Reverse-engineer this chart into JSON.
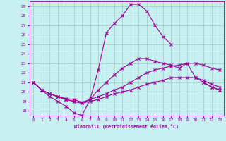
{
  "xlabel": "Windchill (Refroidissement éolien,°C)",
  "background_color": "#c8f0f0",
  "grid_color": "#a0c8c8",
  "line_color": "#990099",
  "xlim": [
    -0.5,
    23.5
  ],
  "ylim": [
    17.5,
    29.5
  ],
  "xticks": [
    0,
    1,
    2,
    3,
    4,
    5,
    6,
    7,
    8,
    9,
    10,
    11,
    12,
    13,
    14,
    15,
    16,
    17,
    18,
    19,
    20,
    21,
    22,
    23
  ],
  "yticks": [
    18,
    19,
    20,
    21,
    22,
    23,
    24,
    25,
    26,
    27,
    28,
    29
  ],
  "series": [
    {
      "x": [
        0,
        1,
        2,
        3,
        4,
        5,
        6,
        7,
        8,
        9,
        10,
        11,
        12,
        13,
        14,
        15,
        16,
        17,
        18,
        19,
        20,
        21,
        22,
        23
      ],
      "y": [
        21.0,
        20.2,
        19.5,
        19.0,
        18.5,
        17.8,
        17.5,
        19.2,
        22.3,
        26.2,
        27.2,
        28.0,
        29.2,
        29.2,
        28.5,
        27.0,
        25.8,
        25.0,
        null,
        null,
        null,
        21.0,
        20.5,
        20.2
      ]
    },
    {
      "x": [
        0,
        1,
        2,
        3,
        4,
        5,
        6,
        7,
        8,
        9,
        10,
        11,
        12,
        13,
        14,
        15,
        16,
        17,
        18,
        19,
        20,
        21,
        22,
        23
      ],
      "y": [
        21.0,
        20.2,
        19.8,
        19.5,
        19.2,
        19.0,
        18.8,
        19.2,
        20.2,
        21.0,
        21.8,
        22.5,
        23.0,
        23.5,
        23.5,
        23.2,
        23.0,
        22.8,
        22.5,
        23.0,
        21.5,
        21.0,
        20.5,
        20.2
      ]
    },
    {
      "x": [
        0,
        1,
        2,
        3,
        4,
        5,
        6,
        7,
        8,
        9,
        10,
        11,
        12,
        13,
        14,
        15,
        16,
        17,
        18,
        19,
        20,
        21,
        22,
        23
      ],
      "y": [
        21.0,
        20.2,
        19.8,
        19.5,
        19.3,
        19.2,
        18.9,
        19.2,
        19.5,
        19.8,
        20.2,
        20.5,
        21.0,
        21.5,
        22.0,
        22.3,
        22.5,
        22.7,
        22.8,
        23.0,
        23.0,
        22.8,
        22.5,
        22.3
      ]
    },
    {
      "x": [
        0,
        1,
        2,
        3,
        4,
        5,
        6,
        7,
        8,
        9,
        10,
        11,
        12,
        13,
        14,
        15,
        16,
        17,
        18,
        19,
        20,
        21,
        22,
        23
      ],
      "y": [
        21.0,
        20.2,
        19.8,
        19.5,
        19.2,
        19.0,
        18.8,
        19.0,
        19.2,
        19.5,
        19.8,
        20.0,
        20.2,
        20.5,
        20.8,
        21.0,
        21.2,
        21.5,
        21.5,
        21.5,
        21.5,
        21.2,
        20.8,
        20.5
      ]
    }
  ],
  "marker": "x",
  "markersize": 3,
  "linewidth": 0.8
}
